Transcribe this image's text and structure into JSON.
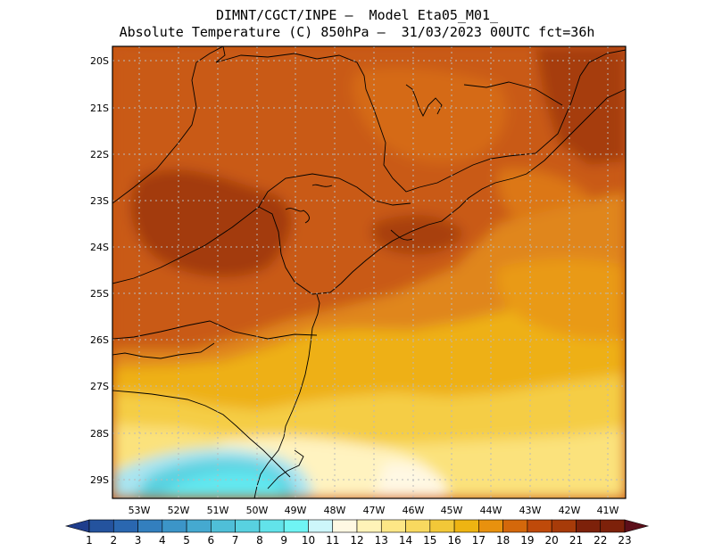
{
  "title": {
    "line1": "DIMNT/CGCT/INPE –  Model Eta05_M01_",
    "line2": "Absolute Temperature (C) 850hPa –  31/03/2023 00UTC fct=36h"
  },
  "latitudes": [
    "20S",
    "21S",
    "22S",
    "23S",
    "24S",
    "25S",
    "26S",
    "27S",
    "28S",
    "29S"
  ],
  "longitudes": [
    "53W",
    "52W",
    "51W",
    "50W",
    "49W",
    "48W",
    "47W",
    "46W",
    "45W",
    "44W",
    "43W",
    "42W",
    "41W"
  ],
  "colorbar": {
    "labels": [
      "1",
      "2",
      "3",
      "4",
      "5",
      "6",
      "7",
      "8",
      "9",
      "10",
      "11",
      "12",
      "13",
      "14",
      "15",
      "16",
      "17",
      "18",
      "19",
      "20",
      "21",
      "22",
      "23"
    ],
    "colors": [
      "#1f3d8c",
      "#24539e",
      "#2a67b0",
      "#337fbe",
      "#3c95c8",
      "#45a9d0",
      "#4fbfd8",
      "#58d1e0",
      "#62e3ea",
      "#6ff4f4",
      "#cdf6fa",
      "#fff8e3",
      "#fff3b8",
      "#fde786",
      "#f8d95f",
      "#f2c838",
      "#eeb412",
      "#e8910e",
      "#d4680b",
      "#bf4a0a",
      "#a73b09",
      "#7d210a",
      "#5c0f1a"
    ]
  },
  "map": {
    "region": "Southern/Southeastern Brazil",
    "lat_range": [
      -29.4,
      -19.7
    ],
    "lon_range": [
      -53.6,
      -40.6
    ],
    "grid": "dotted"
  }
}
